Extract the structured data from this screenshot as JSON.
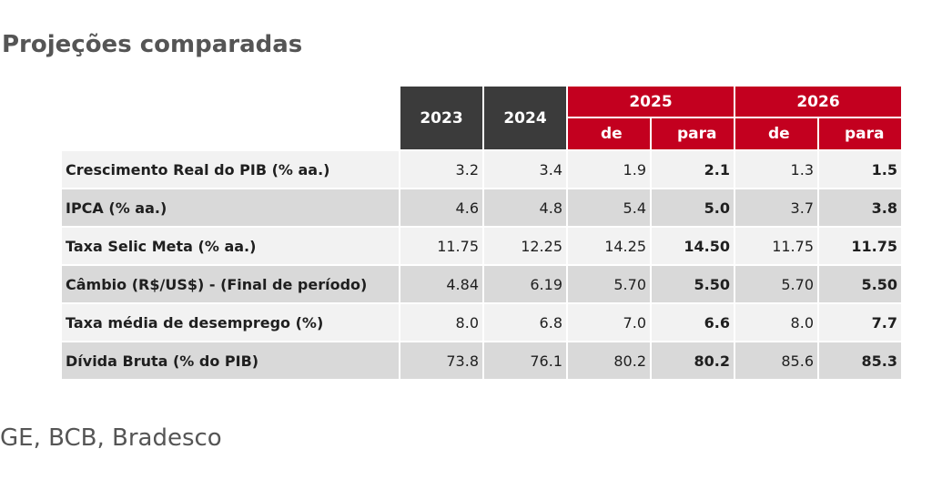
{
  "title": "Projeções comparadas",
  "source": "GE, BCB, Bradesco",
  "table": {
    "year_2023": "2023",
    "year_2024": "2024",
    "year_2025": "2025",
    "year_2026": "2026",
    "sub_de": "de",
    "sub_para": "para",
    "rows": [
      {
        "label": "Crescimento Real do PIB (% aa.)",
        "v2023": "3.2",
        "v2024": "3.4",
        "de2025": "1.9",
        "para2025": "2.1",
        "de2026": "1.3",
        "para2026": "1.5"
      },
      {
        "label": "IPCA (% aa.)",
        "v2023": "4.6",
        "v2024": "4.8",
        "de2025": "5.4",
        "para2025": "5.0",
        "de2026": "3.7",
        "para2026": "3.8"
      },
      {
        "label": "Taxa Selic Meta (% aa.)",
        "v2023": "11.75",
        "v2024": "12.25",
        "de2025": "14.25",
        "para2025": "14.50",
        "de2026": "11.75",
        "para2026": "11.75"
      },
      {
        "label": "Câmbio (R$/US$) - (Final de período)",
        "v2023": "4.84",
        "v2024": "6.19",
        "de2025": "5.70",
        "para2025": "5.50",
        "de2026": "5.70",
        "para2026": "5.50"
      },
      {
        "label": "Taxa média de desemprego (%)",
        "v2023": "8.0",
        "v2024": "6.8",
        "de2025": "7.0",
        "para2025": "6.6",
        "de2026": "8.0",
        "para2026": "7.7"
      },
      {
        "label": "Dívida Bruta (% do PIB)",
        "v2023": "73.8",
        "v2024": "76.1",
        "de2025": "80.2",
        "para2025": "80.2",
        "de2026": "85.6",
        "para2026": "85.3"
      }
    ]
  },
  "colors": {
    "header_dark": "#3b3b3b",
    "header_red": "#c3001f",
    "row_light": "#f2f2f2",
    "row_dark": "#d9d9d9"
  }
}
